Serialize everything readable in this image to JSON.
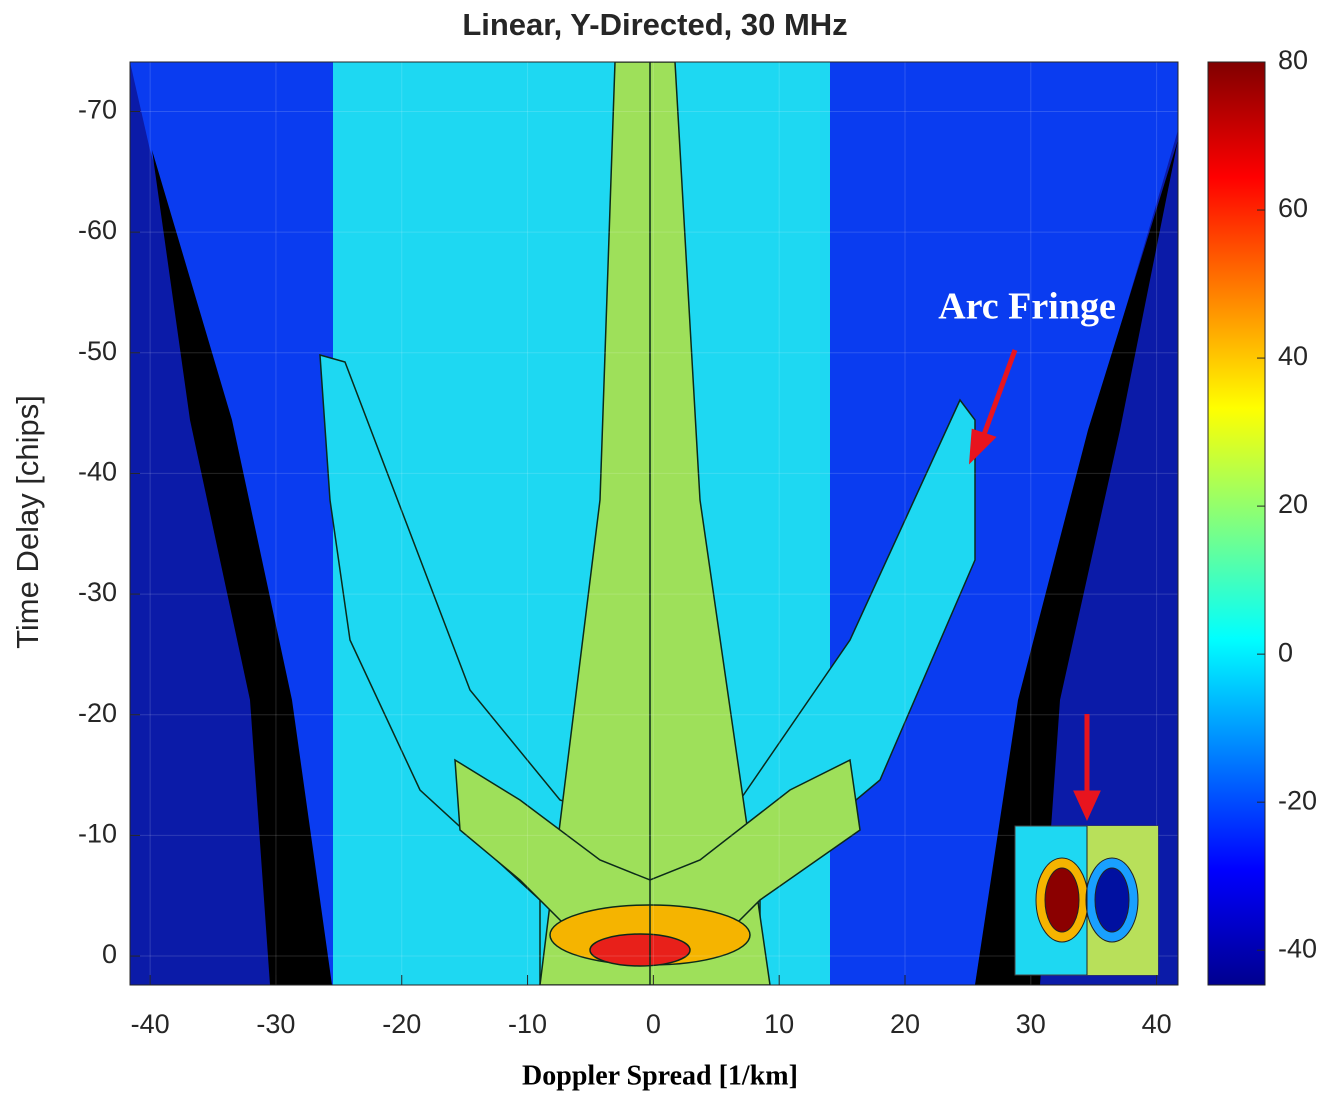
{
  "chart_data": {
    "type": "contour",
    "title": "Linear, Y-Directed, 30 MHz",
    "x_label": "Doppler Spread [1/km]",
    "y_label": "Time Delay [chips]",
    "xlim": [
      -41.6,
      41.7
    ],
    "xticks": [
      -40,
      -30,
      -20,
      -10,
      0,
      10,
      20,
      30,
      40
    ],
    "ylim": [
      2.4,
      -74.1
    ],
    "yticks": [
      0,
      -10,
      -20,
      -30,
      -40,
      -50,
      -60,
      -70
    ],
    "grid": true,
    "colorbar": {
      "clim": [
        -44.7,
        80
      ],
      "ticks": [
        -40,
        -20,
        0,
        20,
        40,
        60,
        80
      ],
      "colormap": "jet"
    },
    "annotations": [
      {
        "text": "Arc Fringe"
      }
    ]
  }
}
